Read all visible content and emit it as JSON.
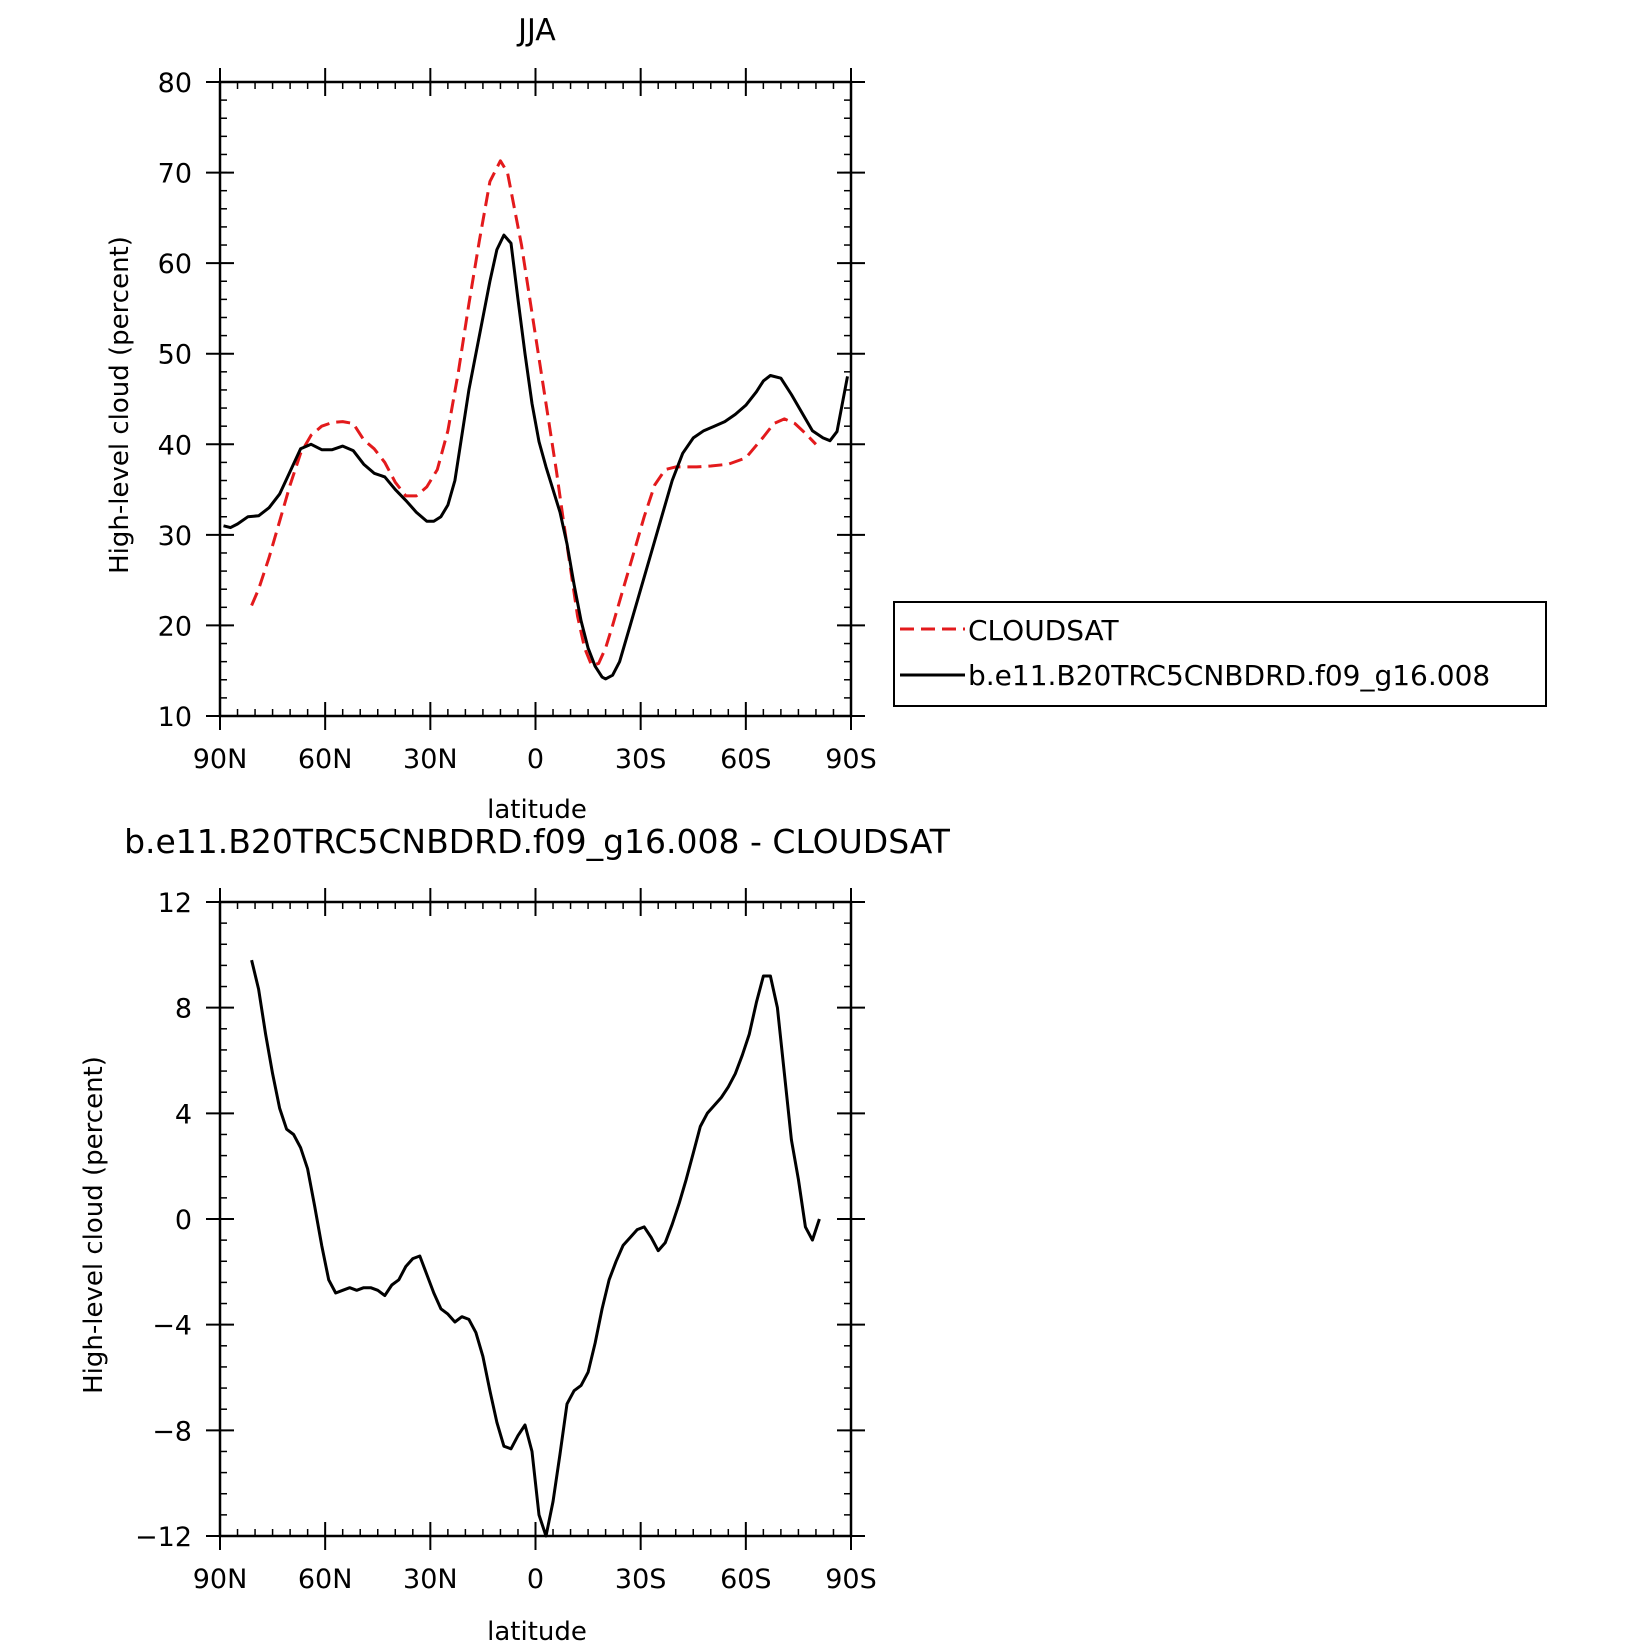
{
  "chart_data": [
    {
      "type": "line",
      "title": "JJA",
      "xlabel": "latitude",
      "ylabel": "High-level cloud (percent)",
      "xlim": [
        90,
        -90
      ],
      "ylim": [
        10,
        80
      ],
      "x_ticks": [
        {
          "value": 90,
          "label": "90N"
        },
        {
          "value": 60,
          "label": "60N"
        },
        {
          "value": 30,
          "label": "30N"
        },
        {
          "value": 0,
          "label": "0"
        },
        {
          "value": -30,
          "label": "30S"
        },
        {
          "value": -60,
          "label": "60S"
        },
        {
          "value": -90,
          "label": "90S"
        }
      ],
      "y_ticks": [
        {
          "value": 80,
          "label": "80"
        },
        {
          "value": 70,
          "label": "70"
        },
        {
          "value": 60,
          "label": "60"
        },
        {
          "value": 50,
          "label": "50"
        },
        {
          "value": 40,
          "label": "40"
        },
        {
          "value": 30,
          "label": "30"
        },
        {
          "value": 20,
          "label": "20"
        },
        {
          "value": 10,
          "label": "10"
        }
      ],
      "legend": {
        "placement": "right"
      },
      "series": [
        {
          "name": "CLOUDSAT",
          "color": "#e31a1c",
          "dash": "dashed",
          "x": [
            81,
            79,
            76,
            73,
            70,
            67,
            64,
            61,
            58,
            55,
            52,
            49,
            46,
            43,
            40,
            37,
            34,
            31,
            28,
            25,
            22,
            19,
            16,
            13,
            10,
            8,
            6,
            4,
            2,
            0,
            -2,
            -4,
            -6,
            -8,
            -10,
            -12,
            -14,
            -16,
            -18,
            -20,
            -22,
            -25,
            -28,
            -31,
            -34,
            -37,
            -40,
            -43,
            -46,
            -50,
            -55,
            -60,
            -65,
            -68,
            -71,
            -74,
            -77,
            -80
          ],
          "y": [
            22.2,
            24,
            27.5,
            31.5,
            35.5,
            39,
            41,
            42,
            42.4,
            42.5,
            42.3,
            40.5,
            39.5,
            38,
            35.8,
            34.3,
            34.3,
            35.3,
            37.2,
            41.5,
            48,
            55.5,
            62.5,
            69,
            71.3,
            70,
            66,
            62,
            57,
            52,
            47,
            42,
            37,
            31.5,
            26.2,
            21,
            17.5,
            15.6,
            15.8,
            17.5,
            20,
            24,
            28,
            32,
            35.5,
            37.2,
            37.5,
            37.5,
            37.5,
            37.6,
            37.8,
            38.5,
            40.8,
            42.3,
            42.8,
            42.3,
            41.2,
            40
          ]
        },
        {
          "name": "b.e11.B20TRC5CNBDRD.f09_g16.008",
          "color": "#000000",
          "dash": "solid",
          "x": [
            89,
            87,
            85,
            82,
            79,
            76,
            73,
            70,
            67,
            64,
            61,
            58,
            55,
            52,
            49,
            46,
            43,
            40,
            37,
            34,
            31,
            29,
            27,
            25,
            23,
            21,
            19,
            17,
            15,
            13,
            11,
            9,
            7,
            5,
            3,
            1,
            -1,
            -3,
            -5,
            -7,
            -9,
            -11,
            -13,
            -15,
            -17,
            -19,
            -20,
            -22,
            -24,
            -27,
            -30,
            -33,
            -36,
            -39,
            -42,
            -45,
            -48,
            -51,
            -54,
            -57,
            -60,
            -63,
            -65,
            -67,
            -70,
            -73,
            -76,
            -79,
            -82,
            -84,
            -86,
            -89
          ],
          "y": [
            31,
            30.8,
            31.2,
            32,
            32.1,
            33,
            34.5,
            37,
            39.5,
            40,
            39.4,
            39.4,
            39.8,
            39.3,
            37.8,
            36.8,
            36.4,
            35,
            33.8,
            32.5,
            31.5,
            31.5,
            32,
            33.3,
            36,
            41,
            46,
            50,
            54,
            58,
            61.5,
            63.1,
            62.2,
            56,
            50,
            44.5,
            40.3,
            37.5,
            35,
            32.5,
            29,
            24.5,
            20.5,
            17.5,
            15.5,
            14.3,
            14.1,
            14.5,
            16,
            20,
            24,
            28,
            32,
            36,
            39,
            40.7,
            41.5,
            42,
            42.5,
            43.3,
            44.3,
            45.8,
            47,
            47.6,
            47.3,
            45.5,
            43.5,
            41.5,
            40.7,
            40.4,
            41.4,
            47.5
          ]
        }
      ]
    },
    {
      "type": "line",
      "title": "b.e11.B20TRC5CNBDRD.f09_g16.008 - CLOUDSAT",
      "xlabel": "latitude",
      "ylabel": "High-level cloud (percent)",
      "xlim": [
        90,
        -90
      ],
      "ylim": [
        -12,
        12
      ],
      "x_ticks": [
        {
          "value": 90,
          "label": "90N"
        },
        {
          "value": 60,
          "label": "60N"
        },
        {
          "value": 30,
          "label": "30N"
        },
        {
          "value": 0,
          "label": "0"
        },
        {
          "value": -30,
          "label": "30S"
        },
        {
          "value": -60,
          "label": "60S"
        },
        {
          "value": -90,
          "label": "90S"
        }
      ],
      "y_ticks": [
        {
          "value": 12,
          "label": "12"
        },
        {
          "value": 8,
          "label": "8"
        },
        {
          "value": 4,
          "label": "4"
        },
        {
          "value": 0,
          "label": "0"
        },
        {
          "value": -4,
          "label": "-4"
        },
        {
          "value": -8,
          "label": "-8"
        },
        {
          "value": -12,
          "label": "-12"
        }
      ],
      "series": [
        {
          "color": "#000000",
          "dash": "solid",
          "x": [
            81,
            79,
            77,
            75,
            73,
            71,
            69,
            67,
            65,
            63,
            61,
            59,
            57,
            55,
            53,
            51,
            49,
            47,
            45,
            43,
            41,
            39,
            37,
            35,
            33,
            31,
            29,
            27,
            25,
            23,
            21,
            19,
            17,
            15,
            13,
            11,
            9,
            7,
            5,
            3,
            1,
            -1,
            -3,
            -5,
            -7,
            -9,
            -11,
            -13,
            -15,
            -17,
            -19,
            -21,
            -23,
            -25,
            -27,
            -29,
            -31,
            -33,
            -35,
            -37,
            -39,
            -41,
            -43,
            -45,
            -47,
            -49,
            -51,
            -53,
            -55,
            -57,
            -59,
            -61,
            -63,
            -65,
            -67,
            -69,
            -71,
            -73,
            -75,
            -77,
            -79,
            -81
          ],
          "y": [
            9.8,
            8.7,
            7,
            5.5,
            4.2,
            3.4,
            3.2,
            2.7,
            1.9,
            0.5,
            -1,
            -2.3,
            -2.8,
            -2.7,
            -2.6,
            -2.7,
            -2.6,
            -2.6,
            -2.7,
            -2.9,
            -2.5,
            -2.3,
            -1.8,
            -1.5,
            -1.4,
            -2.1,
            -2.8,
            -3.4,
            -3.6,
            -3.9,
            -3.7,
            -3.8,
            -4.3,
            -5.2,
            -6.5,
            -7.7,
            -8.6,
            -8.7,
            -8.2,
            -7.8,
            -8.8,
            -11.2,
            -12,
            -10.7,
            -8.9,
            -7,
            -6.5,
            -6.3,
            -5.8,
            -4.7,
            -3.4,
            -2.3,
            -1.6,
            -1,
            -0.7,
            -0.4,
            -0.3,
            -0.7,
            -1.2,
            -0.9,
            -0.2,
            0.6,
            1.5,
            2.5,
            3.5,
            4,
            4.3,
            4.6,
            5,
            5.5,
            6.2,
            7,
            8.2,
            9.2,
            9.2,
            8,
            5.5,
            3,
            1.5,
            -0.3,
            -0.8,
            0
          ]
        }
      ]
    }
  ]
}
